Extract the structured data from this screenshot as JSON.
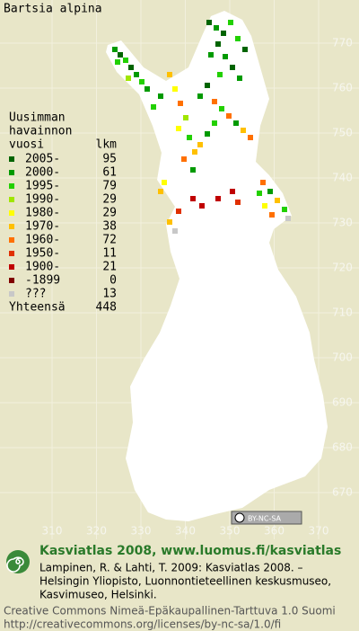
{
  "map": {
    "title": "Bartsia alpina",
    "legend": {
      "heading": [
        "Uusimman",
        "havainnon",
        "vuosi"
      ],
      "count_heading": "lkm",
      "items": [
        {
          "label": "2005-",
          "count": "95",
          "color": "#006400"
        },
        {
          "label": "2000-",
          "count": "61",
          "color": "#009a00"
        },
        {
          "label": "1995-",
          "count": "79",
          "color": "#22d000"
        },
        {
          "label": "1990-",
          "count": "29",
          "color": "#a0e600"
        },
        {
          "label": "1980-",
          "count": "29",
          "color": "#ffff00"
        },
        {
          "label": "1970-",
          "count": "38",
          "color": "#ffc000"
        },
        {
          "label": "1960-",
          "count": "72",
          "color": "#ff7000"
        },
        {
          "label": "1950-",
          "count": "11",
          "color": "#e03000"
        },
        {
          "label": "1900-",
          "count": "21",
          "color": "#c00000"
        },
        {
          "label": "-1899",
          "count": "0",
          "color": "#800000"
        },
        {
          "label": "???",
          "count": "13",
          "color": "#c8c8c8"
        }
      ],
      "total_label": "Yhteensä",
      "total": "448"
    },
    "northing_labels": [
      "770",
      "760",
      "750",
      "740",
      "730",
      "720",
      "710",
      "700",
      "690",
      "680",
      "670"
    ],
    "easting_labels": [
      "310",
      "320",
      "330",
      "340",
      "350",
      "360",
      "370"
    ],
    "badge": "BY-NC-SA",
    "footer": {
      "brand": "Kasviatlas 2008, www.luomus.fi/kasviatlas",
      "citation": [
        "Lampinen, R. & Lahti, T. 2009: Kasviatlas 2008. –",
        "Helsingin Yliopisto, Luonnontieteellinen keskusmuseo,",
        "Kasvimuseo, Helsinki."
      ],
      "license": [
        "Creative Commons Nimeä-Epäkaupallinen-Tarttuva 1.0 Suomi",
        "http://creativecommons.org/licenses/by-nc-sa/1.0/fi"
      ]
    }
  }
}
